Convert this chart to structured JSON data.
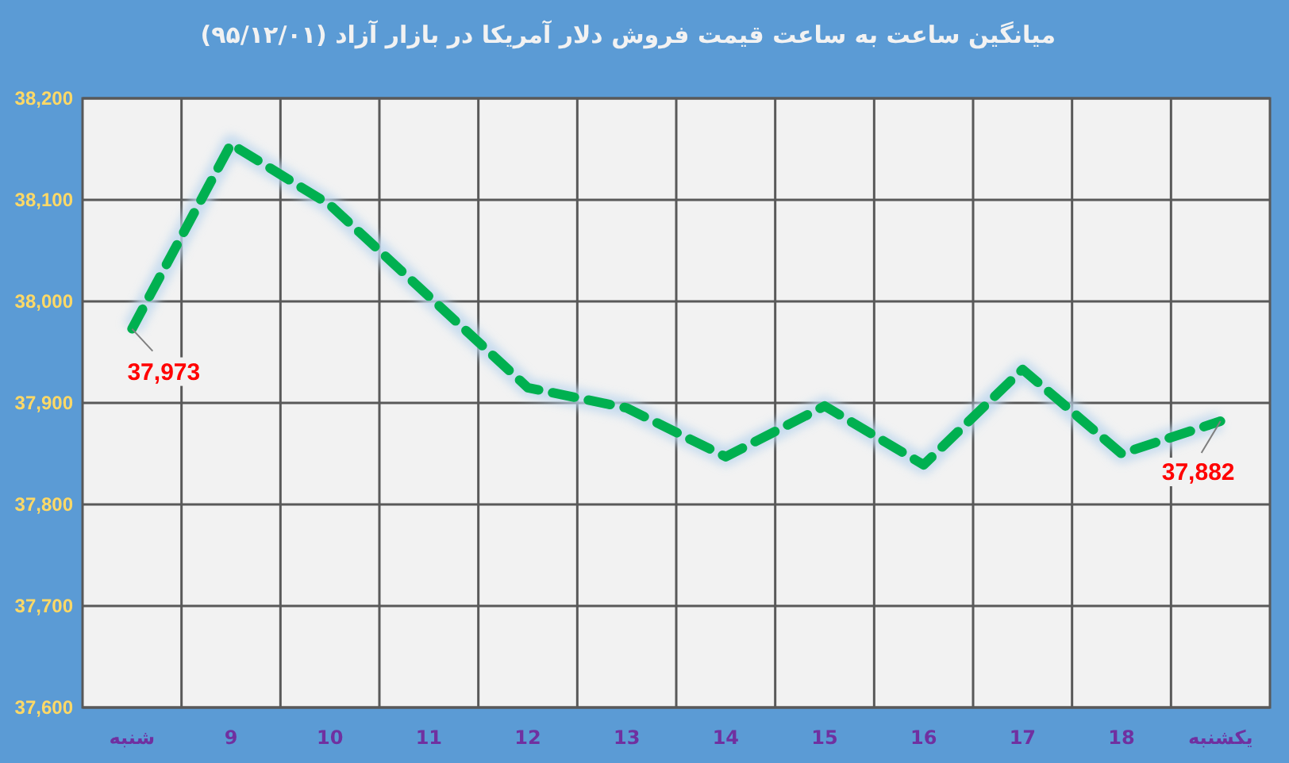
{
  "chart_data": {
    "type": "line",
    "title": "میانگین ساعت به ساعت قیمت فروش دلار آمریکا در بازار آزاد (۹۵/۱۲/۰۱)",
    "categories": [
      "شنبه",
      "9",
      "10",
      "11",
      "12",
      "13",
      "14",
      "15",
      "16",
      "17",
      "18",
      "یکشنبه"
    ],
    "series": [
      {
        "color": "#00b050",
        "values": [
          37973,
          38155,
          38095,
          38005,
          37915,
          37895,
          37847,
          37897,
          37839,
          37933,
          37850,
          37882
        ],
        "value_labels": [
          "37,973",
          null,
          null,
          null,
          null,
          null,
          null,
          null,
          null,
          null,
          null,
          "37,882"
        ]
      }
    ],
    "line_style": "dashed",
    "marker": "none",
    "ylim": [
      37600,
      38200
    ],
    "yticks": [
      {
        "value": 37600,
        "label": "37,600"
      },
      {
        "value": 37700,
        "label": "37,700"
      },
      {
        "value": 37800,
        "label": "37,800"
      },
      {
        "value": 37900,
        "label": "37,900"
      },
      {
        "value": 38000,
        "label": "38,000"
      },
      {
        "value": 38100,
        "label": "38,100"
      },
      {
        "value": 38200,
        "label": "38,200"
      }
    ],
    "grid": true
  }
}
